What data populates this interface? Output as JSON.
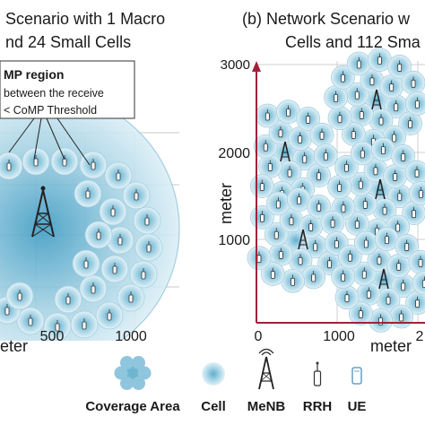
{
  "panel_a": {
    "title_line1": "Scenario with 1 Macro",
    "title_line2": "nd 24 Small Cells",
    "callout_title": "MP region",
    "callout_line1": "between the receive",
    "callout_line2": "< CoMP Threshold",
    "x_ticks": [
      "500",
      "1000"
    ],
    "x_label": "eter"
  },
  "panel_b": {
    "title_line1": "(b) Network Scenario w",
    "title_line2": "Cells and 112 Sma",
    "y_ticks": [
      "3000",
      "2000",
      "1000"
    ],
    "x_ticks": [
      "0",
      "1000",
      "2"
    ],
    "y_label": "meter",
    "x_label": "meter"
  },
  "legend": {
    "coverage_area": "Coverage Area",
    "cell": "Cell",
    "menb": "MeNB",
    "rrh": "RRH",
    "ue": "UE"
  },
  "colors": {
    "cell_fill": "#c9e6f1",
    "cell_stroke": "#9fc9da",
    "axis": "#a0223a",
    "grid": "#c0c0c0",
    "text": "#1a1a1a"
  },
  "icons": [
    "tower-icon",
    "rrh-icon",
    "ue-icon"
  ]
}
